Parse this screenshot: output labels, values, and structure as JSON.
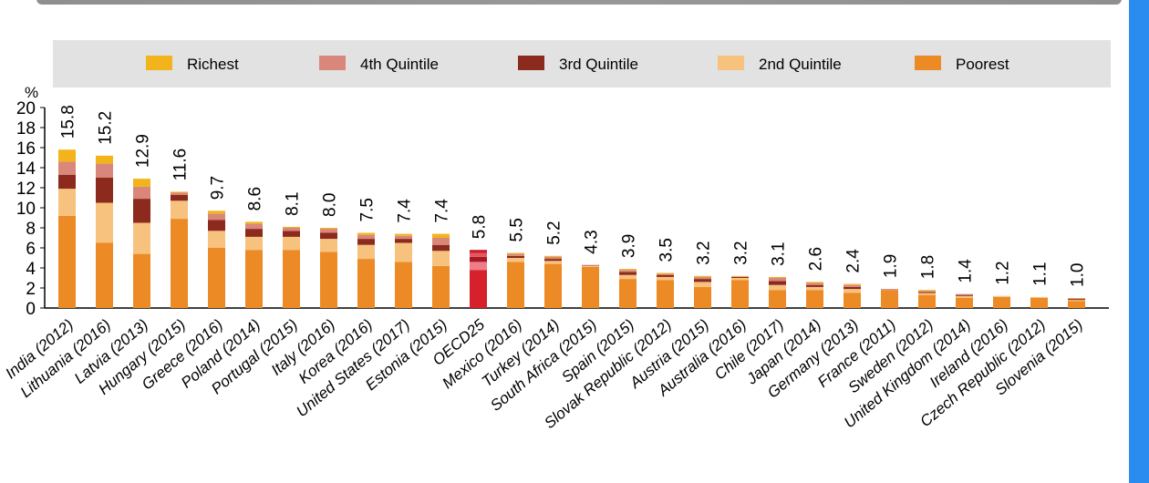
{
  "chart_data": {
    "type": "bar",
    "stacked": true,
    "ylabel": "%",
    "ylim": [
      0,
      20
    ],
    "yticks": [
      0,
      2,
      4,
      6,
      8,
      10,
      12,
      14,
      16,
      18,
      20
    ],
    "grid": false,
    "legend_position": "top",
    "legend": [
      {
        "name": "Richest",
        "color": "#f2b31b"
      },
      {
        "name": "4th Quintile",
        "color": "#d9877a"
      },
      {
        "name": "3rd Quintile",
        "color": "#8c2a1e"
      },
      {
        "name": "2nd Quintile",
        "color": "#f6c27e"
      },
      {
        "name": "Poorest",
        "color": "#ec8a25"
      }
    ],
    "categories": [
      "India (2012)",
      "Lithuania (2016)",
      "Latvia (2013)",
      "Hungary (2015)",
      "Greece (2016)",
      "Poland (2014)",
      "Portugal (2015)",
      "Italy (2016)",
      "Korea (2016)",
      "United States (2017)",
      "Estonia (2015)",
      "OECD25",
      "Mexico (2016)",
      "Turkey (2014)",
      "South Africa (2015)",
      "Spain (2015)",
      "Slovak Republic (2012)",
      "Austria (2015)",
      "Australia (2016)",
      "Chile (2017)",
      "Japan (2014)",
      "Germany (2013)",
      "France (2011)",
      "Sweden (2012)",
      "United Kingdom (2014)",
      "Ireland (2016)",
      "Czech Republic (2012)",
      "Slovenia (2015)"
    ],
    "totals": [
      "15.8",
      "15.2",
      "12.9",
      "11.6",
      "9.7",
      "8.6",
      "8.1",
      "8.0",
      "7.5",
      "7.4",
      "7.4",
      "5.8",
      "5.5",
      "5.2",
      "4.3",
      "3.9",
      "3.5",
      "3.2",
      "3.2",
      "3.1",
      "2.6",
      "2.4",
      "1.9",
      "1.8",
      "1.4",
      "1.2",
      "1.1",
      "1.0"
    ],
    "series": [
      {
        "name": "Poorest",
        "values": [
          9.2,
          6.5,
          5.4,
          8.9,
          6.0,
          5.8,
          5.8,
          5.6,
          4.9,
          4.6,
          4.2,
          3.8,
          4.6,
          4.4,
          4.1,
          2.9,
          2.8,
          2.1,
          2.8,
          1.8,
          1.8,
          1.5,
          1.8,
          1.3,
          1.0,
          1.1,
          1.0,
          0.7
        ]
      },
      {
        "name": "2nd Quintile",
        "values": [
          2.7,
          4.0,
          3.1,
          1.8,
          1.7,
          1.3,
          1.3,
          1.3,
          1.4,
          1.9,
          1.5,
          0.8,
          0.4,
          0.3,
          0.1,
          0.4,
          0.3,
          0.5,
          0.2,
          0.5,
          0.3,
          0.4,
          0.0,
          0.2,
          0.2,
          0.1,
          0.1,
          0.1
        ]
      },
      {
        "name": "3rd Quintile",
        "values": [
          1.4,
          2.5,
          2.4,
          0.6,
          1.1,
          0.8,
          0.6,
          0.6,
          0.6,
          0.4,
          0.6,
          0.5,
          0.2,
          0.2,
          0.05,
          0.3,
          0.2,
          0.3,
          0.1,
          0.4,
          0.2,
          0.2,
          0.0,
          0.1,
          0.1,
          0.0,
          0.0,
          0.1
        ]
      },
      {
        "name": "4th Quintile",
        "values": [
          1.3,
          1.4,
          1.2,
          0.2,
          0.6,
          0.5,
          0.3,
          0.4,
          0.4,
          0.3,
          0.7,
          0.4,
          0.2,
          0.2,
          0.05,
          0.2,
          0.1,
          0.2,
          0.05,
          0.3,
          0.2,
          0.2,
          0.1,
          0.1,
          0.1,
          0.0,
          0.0,
          0.05
        ]
      },
      {
        "name": "Richest",
        "values": [
          1.2,
          0.8,
          0.8,
          0.1,
          0.3,
          0.2,
          0.1,
          0.1,
          0.2,
          0.2,
          0.4,
          0.3,
          0.1,
          0.1,
          0.0,
          0.1,
          0.1,
          0.1,
          0.05,
          0.1,
          0.1,
          0.1,
          0.0,
          0.1,
          0.0,
          0.0,
          0.0,
          0.05
        ]
      }
    ],
    "highlight": {
      "category": "OECD25",
      "colors": {
        "Poorest": "#d5212b",
        "2nd Quintile": "#f07c88",
        "3rd Quintile": "#a81824",
        "4th Quintile": "#e55663",
        "Richest": "#c8202a"
      }
    }
  }
}
